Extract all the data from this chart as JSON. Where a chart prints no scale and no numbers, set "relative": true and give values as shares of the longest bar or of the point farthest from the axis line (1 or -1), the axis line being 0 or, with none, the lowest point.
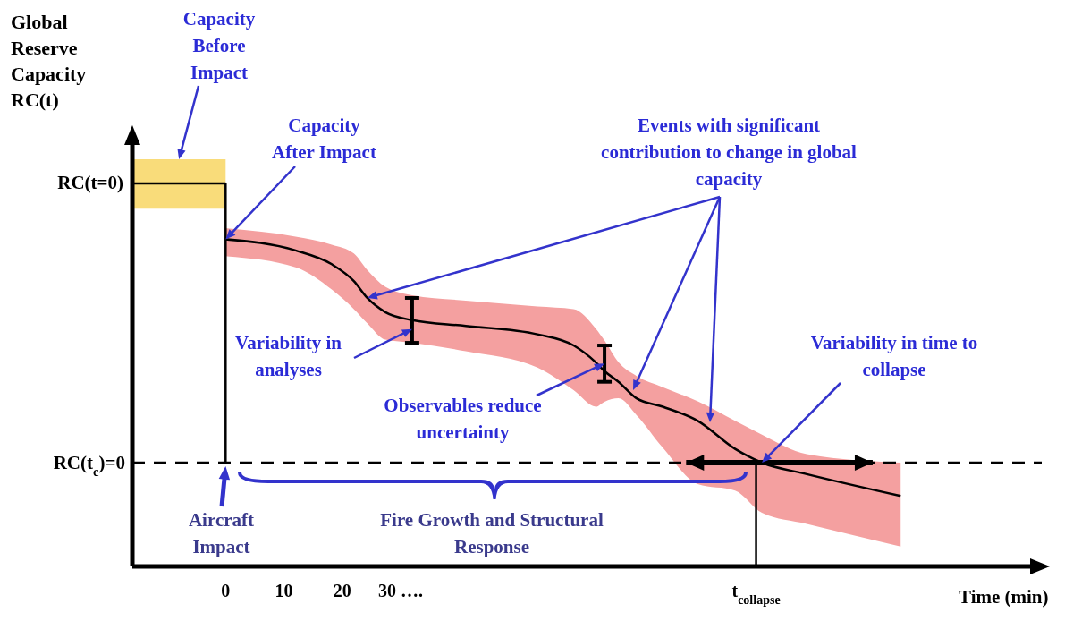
{
  "chart_data": {
    "type": "line",
    "ylabel": "Global Reserve Capacity RC(t)",
    "xlabel": "Time (min)",
    "relative": true,
    "xlim": [
      -16,
      140
    ],
    "xticks": [
      0,
      10,
      20,
      {
        "value": 30,
        "label": "30 …."
      },
      {
        "value": 91,
        "label": "t$_{collapse}$"
      }
    ],
    "series": [
      {
        "color": "#000000",
        "x": [
          -16,
          0
        ],
        "values": [
          1,
          1
        ],
        "lower": [
          0.934,
          0.934
        ],
        "upper": [
          1.063,
          1.063
        ]
      },
      {
        "color": "#000000",
        "x": [
          0,
          12,
          18.2,
          22,
          24.3,
          27.4,
          32,
          41.2,
          53.5,
          59.7,
          63.5,
          65,
          67.4,
          70.5,
          75,
          81,
          87.4,
          92,
          99.7,
          115.8
        ],
        "values": [
          0.854,
          0.825,
          0.789,
          0.745,
          0.701,
          0.664,
          0.643,
          0.628,
          0.606,
          0.577,
          0.533,
          0.51,
          0.482,
          0.439,
          0.417,
          0.38,
          0.307,
          0.271,
          0.241,
          0.184
        ],
        "lower": [
          0.81,
          0.781,
          0.723,
          0.672,
          0.635,
          0.592,
          0.584,
          0.562,
          0.519,
          0.46,
          0.417,
          0.43,
          0.439,
          0.395,
          0.31,
          0.215,
          0.198,
          0.14,
          0.111,
          0.052
        ],
        "upper": [
          0.883,
          0.861,
          0.84,
          0.817,
          0.774,
          0.73,
          0.708,
          0.694,
          0.679,
          0.672,
          0.621,
          0.59,
          0.533,
          0.497,
          0.468,
          0.431,
          0.38,
          0.344,
          0.293,
          0.271
        ],
        "xerrors": [
          null,
          null,
          null,
          null,
          null,
          null,
          null,
          null,
          null,
          null,
          null,
          null,
          null,
          null,
          null,
          null,
          null,
          [
            79,
            111
          ],
          null,
          null
        ]
      },
      {
        "color": "#000000",
        "x": [
          0,
          0
        ],
        "values": [
          1,
          0.271
        ]
      },
      {
        "color": "#000000",
        "x": [
          91,
          91
        ],
        "values": [
          0,
          0.271
        ]
      },
      {
        "color": "#000000",
        "x": [
          32,
          32
        ],
        "values": [
          0.584,
          0.701
        ]
      },
      {
        "color": "#000000",
        "x": [
          65,
          65
        ],
        "values": [
          0.482,
          0.577
        ]
      }
    ],
    "ref_lines": [
      {
        "axis": "y",
        "value": 0.271,
        "line_style": "dashed",
        "label": "RC(t$_{c}$)=0"
      },
      {
        "axis": "x",
        "value": -16,
        "line_style": "solid"
      }
    ],
    "marker": "none",
    "grid": false,
    "legend": false,
    "annotations": [
      {
        "text": "Capacity Before Impact",
        "x": -8,
        "y": 1.063
      },
      {
        "text": "Capacity After Impact",
        "x": 0,
        "y": 0.854
      },
      {
        "text": "Events with significant contribution to change in global capacity",
        "x": 24.3,
        "y": 0.701
      },
      {
        "text": "Variability in analyses",
        "x": 32,
        "y": 0.62
      },
      {
        "text": "Observables reduce uncertainty",
        "x": 65,
        "y": 0.53
      },
      {
        "text": "Variability in time to collapse",
        "x": 92,
        "y": 0.271
      },
      {
        "text": "Aircraft Impact",
        "x": 0,
        "y": 0.271
      },
      "RC(t=0)",
      "Fire Growth and Structural Response"
    ]
  }
}
